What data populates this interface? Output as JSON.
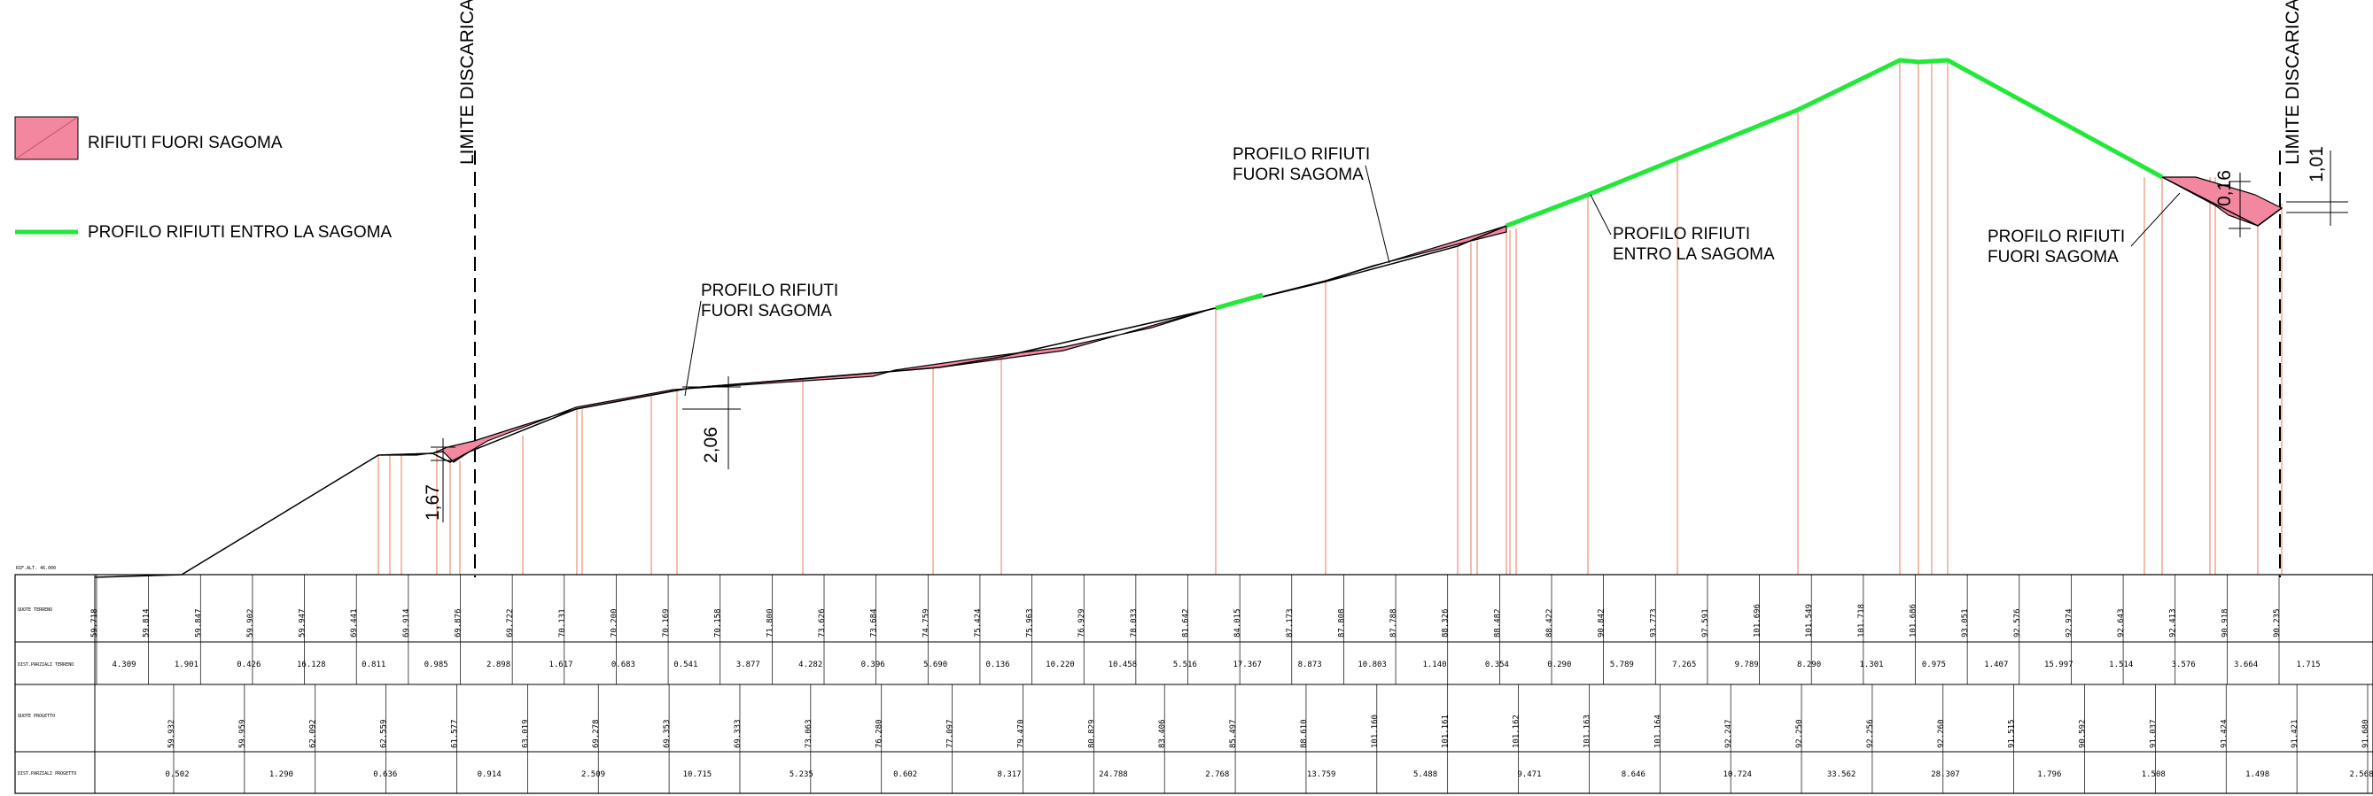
{
  "legend": {
    "fuori_sagoma": "RIFIUTI FUORI SAGOMA",
    "entro_sagoma": "PROFILO RIFIUTI ENTRO LA SAGOMA",
    "fill_color": "#f2879f",
    "line_color": "#22e83a"
  },
  "boundaries": {
    "label": "LIMITE DISCARICA"
  },
  "callouts": {
    "fuori_1": [
      "PROFILO RIFIUTI",
      "FUORI SAGOMA"
    ],
    "fuori_2": [
      "PROFILO RIFIUTI",
      "FUORI SAGOMA"
    ],
    "entro": [
      "PROFILO RIFIUTI",
      "ENTRO LA SAGOMA"
    ],
    "fuori_3": [
      "PROFILO RIFIUTI",
      "FUORI SAGOMA"
    ]
  },
  "dimensions": {
    "d1": "1,67",
    "d2": "2,06",
    "d3": "0,16",
    "d4": "1,01"
  },
  "scale_note": "RIF.ALT. 46.000",
  "table": {
    "row_labels": [
      "QUOTE TERRENO",
      "DIST.PARZIALI TERRENO",
      "QUOTE PROGETTO",
      "DIST.PARZIALI PROGETTO"
    ],
    "quote_terreno": [
      "59.718",
      "59.814",
      "59.847",
      "59.902",
      "59.947",
      "69.441",
      "69.914",
      "69.876",
      "69.722",
      "70.131",
      "70.200",
      "70.169",
      "70.158",
      "71.800",
      "73.626",
      "73.684",
      "74.759",
      "75.424",
      "75.963",
      "76.929",
      "78.033",
      "81.642",
      "84.015",
      "87.173",
      "87.808",
      "87.788",
      "88.326",
      "88.482",
      "88.422",
      "90.842",
      "93.773",
      "97.591",
      "101.696",
      "101.549",
      "101.718",
      "101.686",
      "93.051",
      "92.576",
      "92.974",
      "92.643",
      "92.413",
      "90.918",
      "90.235"
    ],
    "dist_terreno": [
      "4.309",
      "1.901",
      "0.426",
      "16.128",
      "0.811",
      "0.985",
      "2.898",
      "1.617",
      "0.683",
      "0.541",
      "3.877",
      "4.282",
      "0.396",
      "5.690",
      "0.136",
      "10.220",
      "10.458",
      "5.516",
      "17.367",
      "8.873",
      "10.803",
      "1.140",
      "0.354",
      "0.290",
      "5.789",
      "7.265",
      "9.789",
      "8.290",
      "1.301",
      "0.975",
      "1.407",
      "15.997",
      "1.514",
      "3.576",
      "3.664",
      "1.715"
    ],
    "quote_progetto": [
      "59.932",
      "59.959",
      "62.092",
      "62.559",
      "61.577",
      "63.019",
      "69.278",
      "69.353",
      "69.333",
      "73.063",
      "76.280",
      "77.097",
      "79.470",
      "80.829",
      "83.406",
      "85.497",
      "88.610",
      "101.160",
      "101.161",
      "101.162",
      "101.163",
      "101.164",
      "92.247",
      "92.250",
      "92.256",
      "92.260",
      "91.515",
      "90.592",
      "91.037",
      "91.424",
      "91.421",
      "91.680"
    ],
    "dist_progetto": [
      "0.502",
      "1.290",
      "0.636",
      "0.914",
      "2.509",
      "10.715",
      "5.235",
      "0.602",
      "8.317",
      "24.788",
      "2.768",
      "13.759",
      "5.488",
      "9.471",
      "8.646",
      "10.724",
      "33.562",
      "28.307",
      "1.796",
      "1.508",
      "1.498",
      "2.568"
    ]
  }
}
